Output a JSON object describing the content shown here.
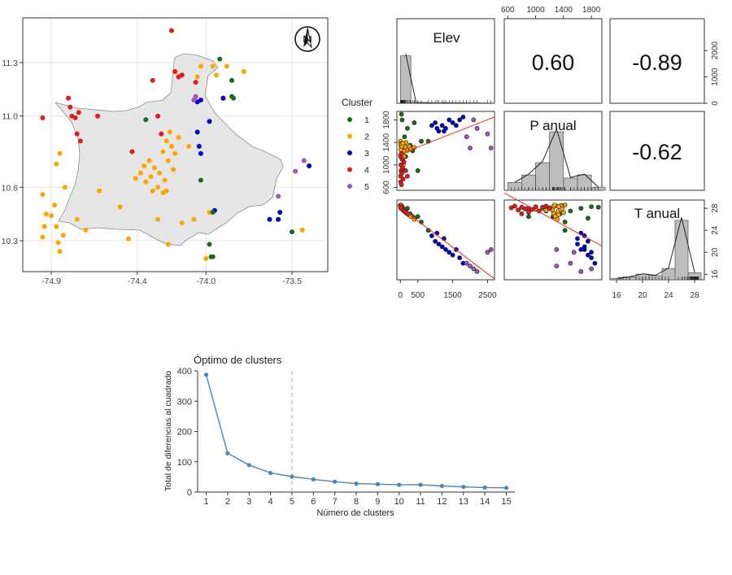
{
  "colors": {
    "cluster_1": "#1a6b1a",
    "cluster_2": "#ffa500",
    "cluster_3": "#0000cd",
    "cluster_4": "#e41a1c",
    "cluster_5": "#9b59b6",
    "land": "#e6e6e6",
    "grid": "#e3e3e3",
    "hist_fill": "#bdbdbd",
    "fit_line": "#e8291c",
    "elbow_line": "#4a86b8"
  },
  "chart_data": [
    {
      "type": "scatter",
      "x_ticks": [
        "-74.9",
        "-74.4",
        "-74.0",
        "-73.5"
      ],
      "y_ticks": [
        "11.3",
        "11.0",
        "10.6",
        "10.3"
      ],
      "legend_title": "Cluster",
      "legend": [
        "1",
        "2",
        "3",
        "4",
        "5"
      ],
      "legend_placement": "right",
      "grid": true,
      "north_arrow_icon": "north-arrow-icon",
      "points": [
        {
          "x": -74.95,
          "y": 10.99,
          "c": 4
        },
        {
          "x": -74.8,
          "y": 11.1,
          "c": 4
        },
        {
          "x": -74.79,
          "y": 11.05,
          "c": 4
        },
        {
          "x": -74.78,
          "y": 11.0,
          "c": 4
        },
        {
          "x": -74.76,
          "y": 10.99,
          "c": 4
        },
        {
          "x": -74.74,
          "y": 11.02,
          "c": 4
        },
        {
          "x": -74.75,
          "y": 10.9,
          "c": 4
        },
        {
          "x": -74.73,
          "y": 10.86,
          "c": 4
        },
        {
          "x": -74.63,
          "y": 11.0,
          "c": 4
        },
        {
          "x": -74.43,
          "y": 10.8,
          "c": 4
        },
        {
          "x": -74.31,
          "y": 11.2,
          "c": 4
        },
        {
          "x": -74.28,
          "y": 11.0,
          "c": 4
        },
        {
          "x": -74.26,
          "y": 10.9,
          "c": 4
        },
        {
          "x": -74.2,
          "y": 11.48,
          "c": 4
        },
        {
          "x": -74.18,
          "y": 11.25,
          "c": 4
        },
        {
          "x": -74.16,
          "y": 11.22,
          "c": 4
        },
        {
          "x": -74.14,
          "y": 11.23,
          "c": 4
        },
        {
          "x": -74.06,
          "y": 11.19,
          "c": 4
        },
        {
          "x": -73.9,
          "y": 11.1,
          "c": 4
        },
        {
          "x": -74.95,
          "y": 10.56,
          "c": 2
        },
        {
          "x": -74.93,
          "y": 10.45,
          "c": 2
        },
        {
          "x": -74.94,
          "y": 10.38,
          "c": 2
        },
        {
          "x": -74.95,
          "y": 10.32,
          "c": 2
        },
        {
          "x": -74.9,
          "y": 10.44,
          "c": 2
        },
        {
          "x": -74.88,
          "y": 10.5,
          "c": 2
        },
        {
          "x": -74.87,
          "y": 10.38,
          "c": 2
        },
        {
          "x": -74.86,
          "y": 10.29,
          "c": 2
        },
        {
          "x": -74.85,
          "y": 10.24,
          "c": 2
        },
        {
          "x": -74.83,
          "y": 10.33,
          "c": 2
        },
        {
          "x": -74.82,
          "y": 10.6,
          "c": 2
        },
        {
          "x": -74.87,
          "y": 10.73,
          "c": 2
        },
        {
          "x": -74.85,
          "y": 10.79,
          "c": 2
        },
        {
          "x": -74.75,
          "y": 10.42,
          "c": 2
        },
        {
          "x": -74.7,
          "y": 10.36,
          "c": 2
        },
        {
          "x": -74.62,
          "y": 10.58,
          "c": 2
        },
        {
          "x": -74.5,
          "y": 10.49,
          "c": 2
        },
        {
          "x": -74.45,
          "y": 10.31,
          "c": 2
        },
        {
          "x": -74.41,
          "y": 10.65,
          "c": 2
        },
        {
          "x": -74.38,
          "y": 10.68,
          "c": 2
        },
        {
          "x": -74.36,
          "y": 10.72,
          "c": 2
        },
        {
          "x": -74.35,
          "y": 10.63,
          "c": 2
        },
        {
          "x": -74.33,
          "y": 10.75,
          "c": 2
        },
        {
          "x": -74.32,
          "y": 10.66,
          "c": 2
        },
        {
          "x": -74.3,
          "y": 10.71,
          "c": 2
        },
        {
          "x": -74.28,
          "y": 10.6,
          "c": 2
        },
        {
          "x": -74.27,
          "y": 10.68,
          "c": 2
        },
        {
          "x": -74.25,
          "y": 10.57,
          "c": 2
        },
        {
          "x": -74.25,
          "y": 10.8,
          "c": 2
        },
        {
          "x": -74.24,
          "y": 10.64,
          "c": 2
        },
        {
          "x": -74.23,
          "y": 10.86,
          "c": 2
        },
        {
          "x": -74.22,
          "y": 10.75,
          "c": 2
        },
        {
          "x": -74.21,
          "y": 10.91,
          "c": 2
        },
        {
          "x": -74.2,
          "y": 10.83,
          "c": 2
        },
        {
          "x": -74.19,
          "y": 10.7,
          "c": 2
        },
        {
          "x": -74.18,
          "y": 10.79,
          "c": 2
        },
        {
          "x": -74.16,
          "y": 10.88,
          "c": 2
        },
        {
          "x": -74.14,
          "y": 10.4,
          "c": 2
        },
        {
          "x": -74.1,
          "y": 10.83,
          "c": 2
        },
        {
          "x": -74.07,
          "y": 10.42,
          "c": 2
        },
        {
          "x": -74.05,
          "y": 11.22,
          "c": 2
        },
        {
          "x": -74.03,
          "y": 11.28,
          "c": 2
        },
        {
          "x": -74.28,
          "y": 10.42,
          "c": 2
        },
        {
          "x": -74.22,
          "y": 10.28,
          "c": 2
        },
        {
          "x": -74.0,
          "y": 10.2,
          "c": 2
        },
        {
          "x": -73.98,
          "y": 10.46,
          "c": 2
        },
        {
          "x": -73.96,
          "y": 11.28,
          "c": 2
        },
        {
          "x": -73.94,
          "y": 11.23,
          "c": 2
        },
        {
          "x": -73.88,
          "y": 11.28,
          "c": 2
        },
        {
          "x": -73.78,
          "y": 11.25,
          "c": 2
        },
        {
          "x": -73.44,
          "y": 10.36,
          "c": 2
        },
        {
          "x": -74.23,
          "y": 10.58,
          "c": 2
        },
        {
          "x": -74.31,
          "y": 10.58,
          "c": 2
        },
        {
          "x": -74.05,
          "y": 11.08,
          "c": 3
        },
        {
          "x": -74.03,
          "y": 11.09,
          "c": 3
        },
        {
          "x": -73.98,
          "y": 10.97,
          "c": 3
        },
        {
          "x": -74.05,
          "y": 10.91,
          "c": 3
        },
        {
          "x": -74.04,
          "y": 10.83,
          "c": 3
        },
        {
          "x": -74.03,
          "y": 10.79,
          "c": 3
        },
        {
          "x": -73.95,
          "y": 10.47,
          "c": 3
        },
        {
          "x": -73.9,
          "y": 11.1,
          "c": 3
        },
        {
          "x": -73.63,
          "y": 10.42,
          "c": 3
        },
        {
          "x": -73.58,
          "y": 10.42,
          "c": 3
        },
        {
          "x": -73.57,
          "y": 10.46,
          "c": 3
        },
        {
          "x": -73.4,
          "y": 10.72,
          "c": 3
        },
        {
          "x": -74.35,
          "y": 10.98,
          "c": 1
        },
        {
          "x": -74.03,
          "y": 10.64,
          "c": 1
        },
        {
          "x": -73.96,
          "y": 10.46,
          "c": 1
        },
        {
          "x": -73.98,
          "y": 10.28,
          "c": 1
        },
        {
          "x": -73.97,
          "y": 10.21,
          "c": 1
        },
        {
          "x": -73.96,
          "y": 10.21,
          "c": 1
        },
        {
          "x": -73.92,
          "y": 11.32,
          "c": 1
        },
        {
          "x": -73.85,
          "y": 11.2,
          "c": 1
        },
        {
          "x": -73.85,
          "y": 11.11,
          "c": 1
        },
        {
          "x": -73.84,
          "y": 11.1,
          "c": 1
        },
        {
          "x": -73.5,
          "y": 10.35,
          "c": 1
        },
        {
          "x": -74.07,
          "y": 11.09,
          "c": 5
        },
        {
          "x": -74.06,
          "y": 11.11,
          "c": 5
        },
        {
          "x": -73.58,
          "y": 10.55,
          "c": 5
        },
        {
          "x": -73.48,
          "y": 10.69,
          "c": 5
        },
        {
          "x": -73.43,
          "y": 10.75,
          "c": 5
        }
      ]
    },
    {
      "type": "scatter",
      "variables": [
        "Elev",
        "P anual",
        "T anual"
      ],
      "correlations": {
        "elev_p": "0.60",
        "elev_t": "-0.89",
        "p_t": "-0.62"
      },
      "elev_ticks": [
        "0",
        "500",
        "1500",
        "2500"
      ],
      "p_ticks": [
        "600",
        "1000",
        "1400",
        "1800"
      ],
      "t_ticks": [
        "16",
        "20",
        "24",
        "28"
      ],
      "elev_hist_ticks": [
        "0",
        "1000",
        "2000"
      ],
      "p_hist_ticks": [
        "600",
        "1000",
        "1400",
        "1800"
      ],
      "elev_range": [
        -100,
        2700
      ],
      "p_range": [
        550,
        1950
      ],
      "t_range": [
        15,
        29.5
      ],
      "histograms": {
        "elev_bins": [
          0,
          300,
          600,
          900,
          1200,
          1500,
          1800,
          2100,
          2400,
          2700
        ],
        "elev_counts": [
          1800,
          30,
          20,
          10,
          15,
          10,
          5,
          5,
          0
        ],
        "elev_count_range": [
          0,
          2500
        ],
        "p_bins": [
          600,
          800,
          1000,
          1200,
          1400,
          1600,
          1800,
          2000
        ],
        "p_counts": [
          5,
          10,
          18,
          38,
          8,
          10,
          2
        ],
        "t_bins": [
          15,
          17,
          19,
          21,
          23,
          25,
          27,
          29
        ],
        "t_counts": [
          1,
          2,
          4,
          3,
          8,
          42,
          5
        ]
      },
      "points": [
        {
          "elev": 30,
          "p": 1900,
          "t": 28.2,
          "c": 1
        },
        {
          "elev": 200,
          "p": 1650,
          "t": 28.0,
          "c": 1
        },
        {
          "elev": 120,
          "p": 1500,
          "t": 27.5,
          "c": 1
        },
        {
          "elev": 280,
          "p": 1350,
          "t": 27.0,
          "c": 1
        },
        {
          "elev": 400,
          "p": 1750,
          "t": 26.2,
          "c": 1
        },
        {
          "elev": 600,
          "p": 1420,
          "t": 25.5,
          "c": 1
        },
        {
          "elev": 800,
          "p": 1420,
          "t": 24.0,
          "c": 1
        },
        {
          "elev": 350,
          "p": 1250,
          "t": 26.5,
          "c": 1
        },
        {
          "elev": 150,
          "p": 1150,
          "t": 27.5,
          "c": 1
        },
        {
          "elev": 50,
          "p": 1800,
          "t": 28.3,
          "c": 1
        },
        {
          "elev": 500,
          "p": 900,
          "t": 26.5,
          "c": 1
        },
        {
          "elev": 5,
          "p": 1420,
          "t": 28.6,
          "c": 2
        },
        {
          "elev": 15,
          "p": 1380,
          "t": 28.5,
          "c": 2
        },
        {
          "elev": 25,
          "p": 1300,
          "t": 28.4,
          "c": 2
        },
        {
          "elev": 35,
          "p": 1250,
          "t": 28.2,
          "c": 2
        },
        {
          "elev": 50,
          "p": 1200,
          "t": 28.1,
          "c": 2
        },
        {
          "elev": 60,
          "p": 1100,
          "t": 28.0,
          "c": 2
        },
        {
          "elev": 80,
          "p": 1000,
          "t": 27.8,
          "c": 2
        },
        {
          "elev": 100,
          "p": 1150,
          "t": 27.6,
          "c": 2
        },
        {
          "elev": 130,
          "p": 1320,
          "t": 27.4,
          "c": 2
        },
        {
          "elev": 160,
          "p": 1400,
          "t": 27.2,
          "c": 2
        },
        {
          "elev": 200,
          "p": 1260,
          "t": 27.0,
          "c": 2
        },
        {
          "elev": 250,
          "p": 1330,
          "t": 26.8,
          "c": 2
        },
        {
          "elev": 300,
          "p": 1280,
          "t": 26.5,
          "c": 2
        },
        {
          "elev": 400,
          "p": 1310,
          "t": 26.0,
          "c": 2
        },
        {
          "elev": 10,
          "p": 1360,
          "t": 28.5,
          "c": 2
        },
        {
          "elev": 20,
          "p": 1270,
          "t": 28.6,
          "c": 2
        },
        {
          "elev": 40,
          "p": 1330,
          "t": 28.3,
          "c": 2
        },
        {
          "elev": 70,
          "p": 1380,
          "t": 27.9,
          "c": 2
        },
        {
          "elev": 110,
          "p": 1240,
          "t": 27.7,
          "c": 2
        },
        {
          "elev": 900,
          "p": 1700,
          "t": 23.0,
          "c": 3
        },
        {
          "elev": 1000,
          "p": 1750,
          "t": 22.0,
          "c": 3
        },
        {
          "elev": 1100,
          "p": 1600,
          "t": 21.5,
          "c": 3
        },
        {
          "elev": 1200,
          "p": 1700,
          "t": 21.0,
          "c": 3
        },
        {
          "elev": 1300,
          "p": 1650,
          "t": 20.5,
          "c": 3
        },
        {
          "elev": 1400,
          "p": 1800,
          "t": 20.0,
          "c": 3
        },
        {
          "elev": 1500,
          "p": 1750,
          "t": 19.5,
          "c": 3
        },
        {
          "elev": 1600,
          "p": 1700,
          "t": 20.5,
          "c": 3
        },
        {
          "elev": 1700,
          "p": 1800,
          "t": 19.0,
          "c": 3
        },
        {
          "elev": 1800,
          "p": 1850,
          "t": 18.0,
          "c": 3
        },
        {
          "elev": 1250,
          "p": 1600,
          "t": 22.5,
          "c": 3
        },
        {
          "elev": 1050,
          "p": 1650,
          "t": 23.5,
          "c": 3
        },
        {
          "elev": 5,
          "p": 800,
          "t": 28.2,
          "c": 4
        },
        {
          "elev": 10,
          "p": 700,
          "t": 28.4,
          "c": 4
        },
        {
          "elev": 20,
          "p": 900,
          "t": 28.0,
          "c": 4
        },
        {
          "elev": 15,
          "p": 1000,
          "t": 28.3,
          "c": 4
        },
        {
          "elev": 30,
          "p": 650,
          "t": 28.1,
          "c": 4
        },
        {
          "elev": 40,
          "p": 850,
          "t": 27.9,
          "c": 4
        },
        {
          "elev": 50,
          "p": 1100,
          "t": 28.2,
          "c": 4
        },
        {
          "elev": 60,
          "p": 950,
          "t": 27.8,
          "c": 4
        },
        {
          "elev": 80,
          "p": 750,
          "t": 27.7,
          "c": 4
        },
        {
          "elev": 100,
          "p": 1050,
          "t": 27.5,
          "c": 4
        },
        {
          "elev": 150,
          "p": 900,
          "t": 27.3,
          "c": 4
        },
        {
          "elev": 200,
          "p": 800,
          "t": 27.0,
          "c": 4
        },
        {
          "elev": 8,
          "p": 1150,
          "t": 28.4,
          "c": 4
        },
        {
          "elev": 25,
          "p": 1200,
          "t": 28.0,
          "c": 4
        },
        {
          "elev": 1900,
          "p": 1500,
          "t": 18.0,
          "c": 5
        },
        {
          "elev": 2100,
          "p": 1800,
          "t": 17.0,
          "c": 5
        },
        {
          "elev": 2000,
          "p": 1300,
          "t": 17.5,
          "c": 5
        },
        {
          "elev": 2500,
          "p": 1550,
          "t": 20.0,
          "c": 5
        },
        {
          "elev": 2600,
          "p": 1300,
          "t": 20.5,
          "c": 5
        },
        {
          "elev": 2200,
          "p": 1650,
          "t": 16.5,
          "c": 5
        }
      ]
    },
    {
      "type": "line",
      "title": "Óptimo de clusters",
      "xlabel": "Número de clusters",
      "ylabel": "Total de diferencias al cuadrado",
      "x": [
        1,
        2,
        3,
        4,
        5,
        6,
        7,
        8,
        9,
        10,
        11,
        12,
        13,
        14,
        15
      ],
      "y": [
        387,
        128,
        89,
        63,
        51,
        42,
        34,
        28,
        26,
        24,
        24,
        20,
        17,
        15,
        14
      ],
      "xlim": [
        0.6,
        15.4
      ],
      "ylim": [
        0,
        400
      ],
      "y_ticks": [
        0,
        100,
        200,
        300,
        400
      ],
      "vline_x": 5
    }
  ]
}
